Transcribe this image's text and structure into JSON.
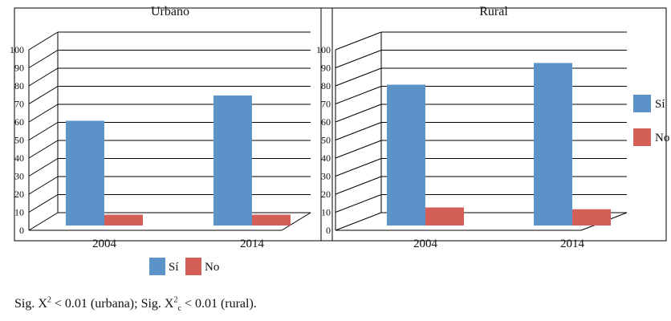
{
  "colors": {
    "si": "#5b93c8",
    "no": "#d45e58",
    "grid": "#000000",
    "axis": "#000000"
  },
  "chart_data": [
    {
      "type": "bar",
      "title": "Urbano",
      "categories": [
        "2004",
        "2014"
      ],
      "series": [
        {
          "name": "Sí",
          "values": [
            58,
            72
          ]
        },
        {
          "name": "No",
          "values": [
            6,
            6
          ]
        }
      ],
      "ylim": [
        0,
        100
      ],
      "yticks": [
        0,
        10,
        20,
        30,
        40,
        50,
        60,
        70,
        80,
        90,
        100
      ],
      "legend_position": "bottom"
    },
    {
      "type": "bar",
      "title": "Rural",
      "categories": [
        "2004",
        "2014"
      ],
      "series": [
        {
          "name": "Sí",
          "values": [
            78,
            90
          ]
        },
        {
          "name": "No",
          "values": [
            10,
            9
          ]
        }
      ],
      "ylim": [
        0,
        100
      ],
      "yticks": [
        0,
        10,
        20,
        30,
        40,
        50,
        60,
        70,
        80,
        90,
        100
      ],
      "legend_position": "right"
    }
  ],
  "footnote": {
    "prefix": "Sig. X",
    "sup1": "2",
    "mid": " < 0.01 (urbana); Sig. X",
    "sup2": "2",
    "sub2": "c",
    "suffix": " < 0.01 (rural)."
  }
}
